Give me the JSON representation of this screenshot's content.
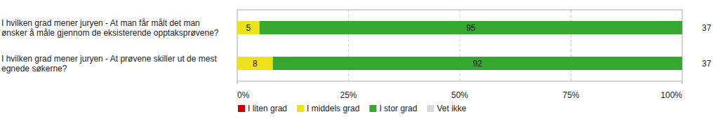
{
  "chart_data": {
    "type": "bar",
    "orientation": "horizontal",
    "stacked": true,
    "data_labels": true,
    "grid": true,
    "legend": "bottom",
    "categories": [
      "I hvilken grad mener juryen - At man får målt det man ønsker å måle gjennom de eksisterende opptaksprøvene?",
      "I hvilken grad mener juryen - At prøvene skiller ut de mest egnede søkerne?"
    ],
    "n": [
      37,
      37
    ],
    "series": [
      {
        "name": "I liten grad",
        "color": "#cc0000",
        "values": [
          0,
          0
        ]
      },
      {
        "name": "I middels grad",
        "color": "#eee21c",
        "values": [
          5,
          8
        ]
      },
      {
        "name": "I stor grad",
        "color": "#36a832",
        "values": [
          95,
          92
        ]
      },
      {
        "name": "Vet ikke",
        "color": "#d9d9d9",
        "values": [
          0,
          0
        ]
      }
    ],
    "xlim": [
      0,
      100
    ],
    "xticks": [
      {
        "value": 0,
        "label": "0%"
      },
      {
        "value": 25,
        "label": "25%"
      },
      {
        "value": 50,
        "label": "50%"
      },
      {
        "value": 75,
        "label": "75%"
      },
      {
        "value": 100,
        "label": "100%"
      }
    ]
  }
}
